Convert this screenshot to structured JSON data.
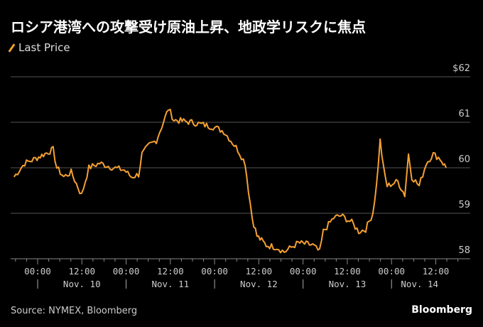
{
  "title": "ロシア港湾への攻撃受け原油上昇、地政学リスクに焦点",
  "source": "Source: NYMEX, Bloomberg",
  "brand": "Bloomberg",
  "chart_data": {
    "type": "line",
    "title": "ロシア港湾への攻撃受け原油上昇、地政学リスクに焦点",
    "legend": [
      "Last Price"
    ],
    "legend_placement": "top-left",
    "color": "#f5a033",
    "x_unit": "hours since Nov. 10 00:00",
    "ylim": [
      58,
      62
    ],
    "y_ticks": [
      {
        "v": 62,
        "label": "$62"
      },
      {
        "v": 61,
        "label": "61"
      },
      {
        "v": 60,
        "label": "60"
      },
      {
        "v": 59,
        "label": "59"
      },
      {
        "v": 58,
        "label": "58"
      }
    ],
    "x_ticks": [
      {
        "h": 0,
        "label": "00:00"
      },
      {
        "h": 12,
        "label": "12:00"
      },
      {
        "h": 24,
        "label": "00:00"
      },
      {
        "h": 36,
        "label": "12:00"
      },
      {
        "h": 48,
        "label": "00:00"
      },
      {
        "h": 60,
        "label": "12:00"
      },
      {
        "h": 72,
        "label": "00:00"
      },
      {
        "h": 84,
        "label": "12:00"
      },
      {
        "h": 96,
        "label": "00:00"
      },
      {
        "h": 108,
        "label": "12:00"
      }
    ],
    "day_labels": [
      {
        "h": 12,
        "label": "Nov. 10"
      },
      {
        "h": 36,
        "label": "Nov. 11"
      },
      {
        "h": 60,
        "label": "Nov. 12"
      },
      {
        "h": 84,
        "label": "Nov. 13"
      },
      {
        "h": 104,
        "label": "Nov. 14"
      }
    ],
    "series": [
      {
        "name": "Last Price",
        "x": [
          -6.4,
          -3.5,
          -0.6,
          4.2,
          5.2,
          7.1,
          9.1,
          11.9,
          13.9,
          16.8,
          20.6,
          23.5,
          25.4,
          27.4,
          28.3,
          30.3,
          32.2,
          34.1,
          35.5,
          37.0,
          41.8,
          47.6,
          50.5,
          52.4,
          54.3,
          56.3,
          57.2,
          58.2,
          59.5,
          62.0,
          64.9,
          66.9,
          70.7,
          74.6,
          76.5,
          77.5,
          80.3,
          82.3,
          85.2,
          87.1,
          89.0,
          90.9,
          91.9,
          92.9,
          93.8,
          94.8,
          97.7,
          99.6,
          100.6,
          101.5,
          103.5,
          105.4,
          107.3,
          109.2,
          110.8
        ],
        "y": [
          59.8,
          60.1,
          60.2,
          60.4,
          60.0,
          59.8,
          59.9,
          59.4,
          60.0,
          60.1,
          60.0,
          59.95,
          59.8,
          59.85,
          60.3,
          60.5,
          60.6,
          61.0,
          61.3,
          61.05,
          61.0,
          60.9,
          60.8,
          60.6,
          60.4,
          60.1,
          59.5,
          58.9,
          58.5,
          58.3,
          58.25,
          58.15,
          58.35,
          58.3,
          58.15,
          58.6,
          58.9,
          58.95,
          58.8,
          58.6,
          58.65,
          59.0,
          59.6,
          60.6,
          60.0,
          59.6,
          59.7,
          59.4,
          60.3,
          59.8,
          59.6,
          60.1,
          60.3,
          60.2,
          60.0
        ]
      }
    ]
  }
}
